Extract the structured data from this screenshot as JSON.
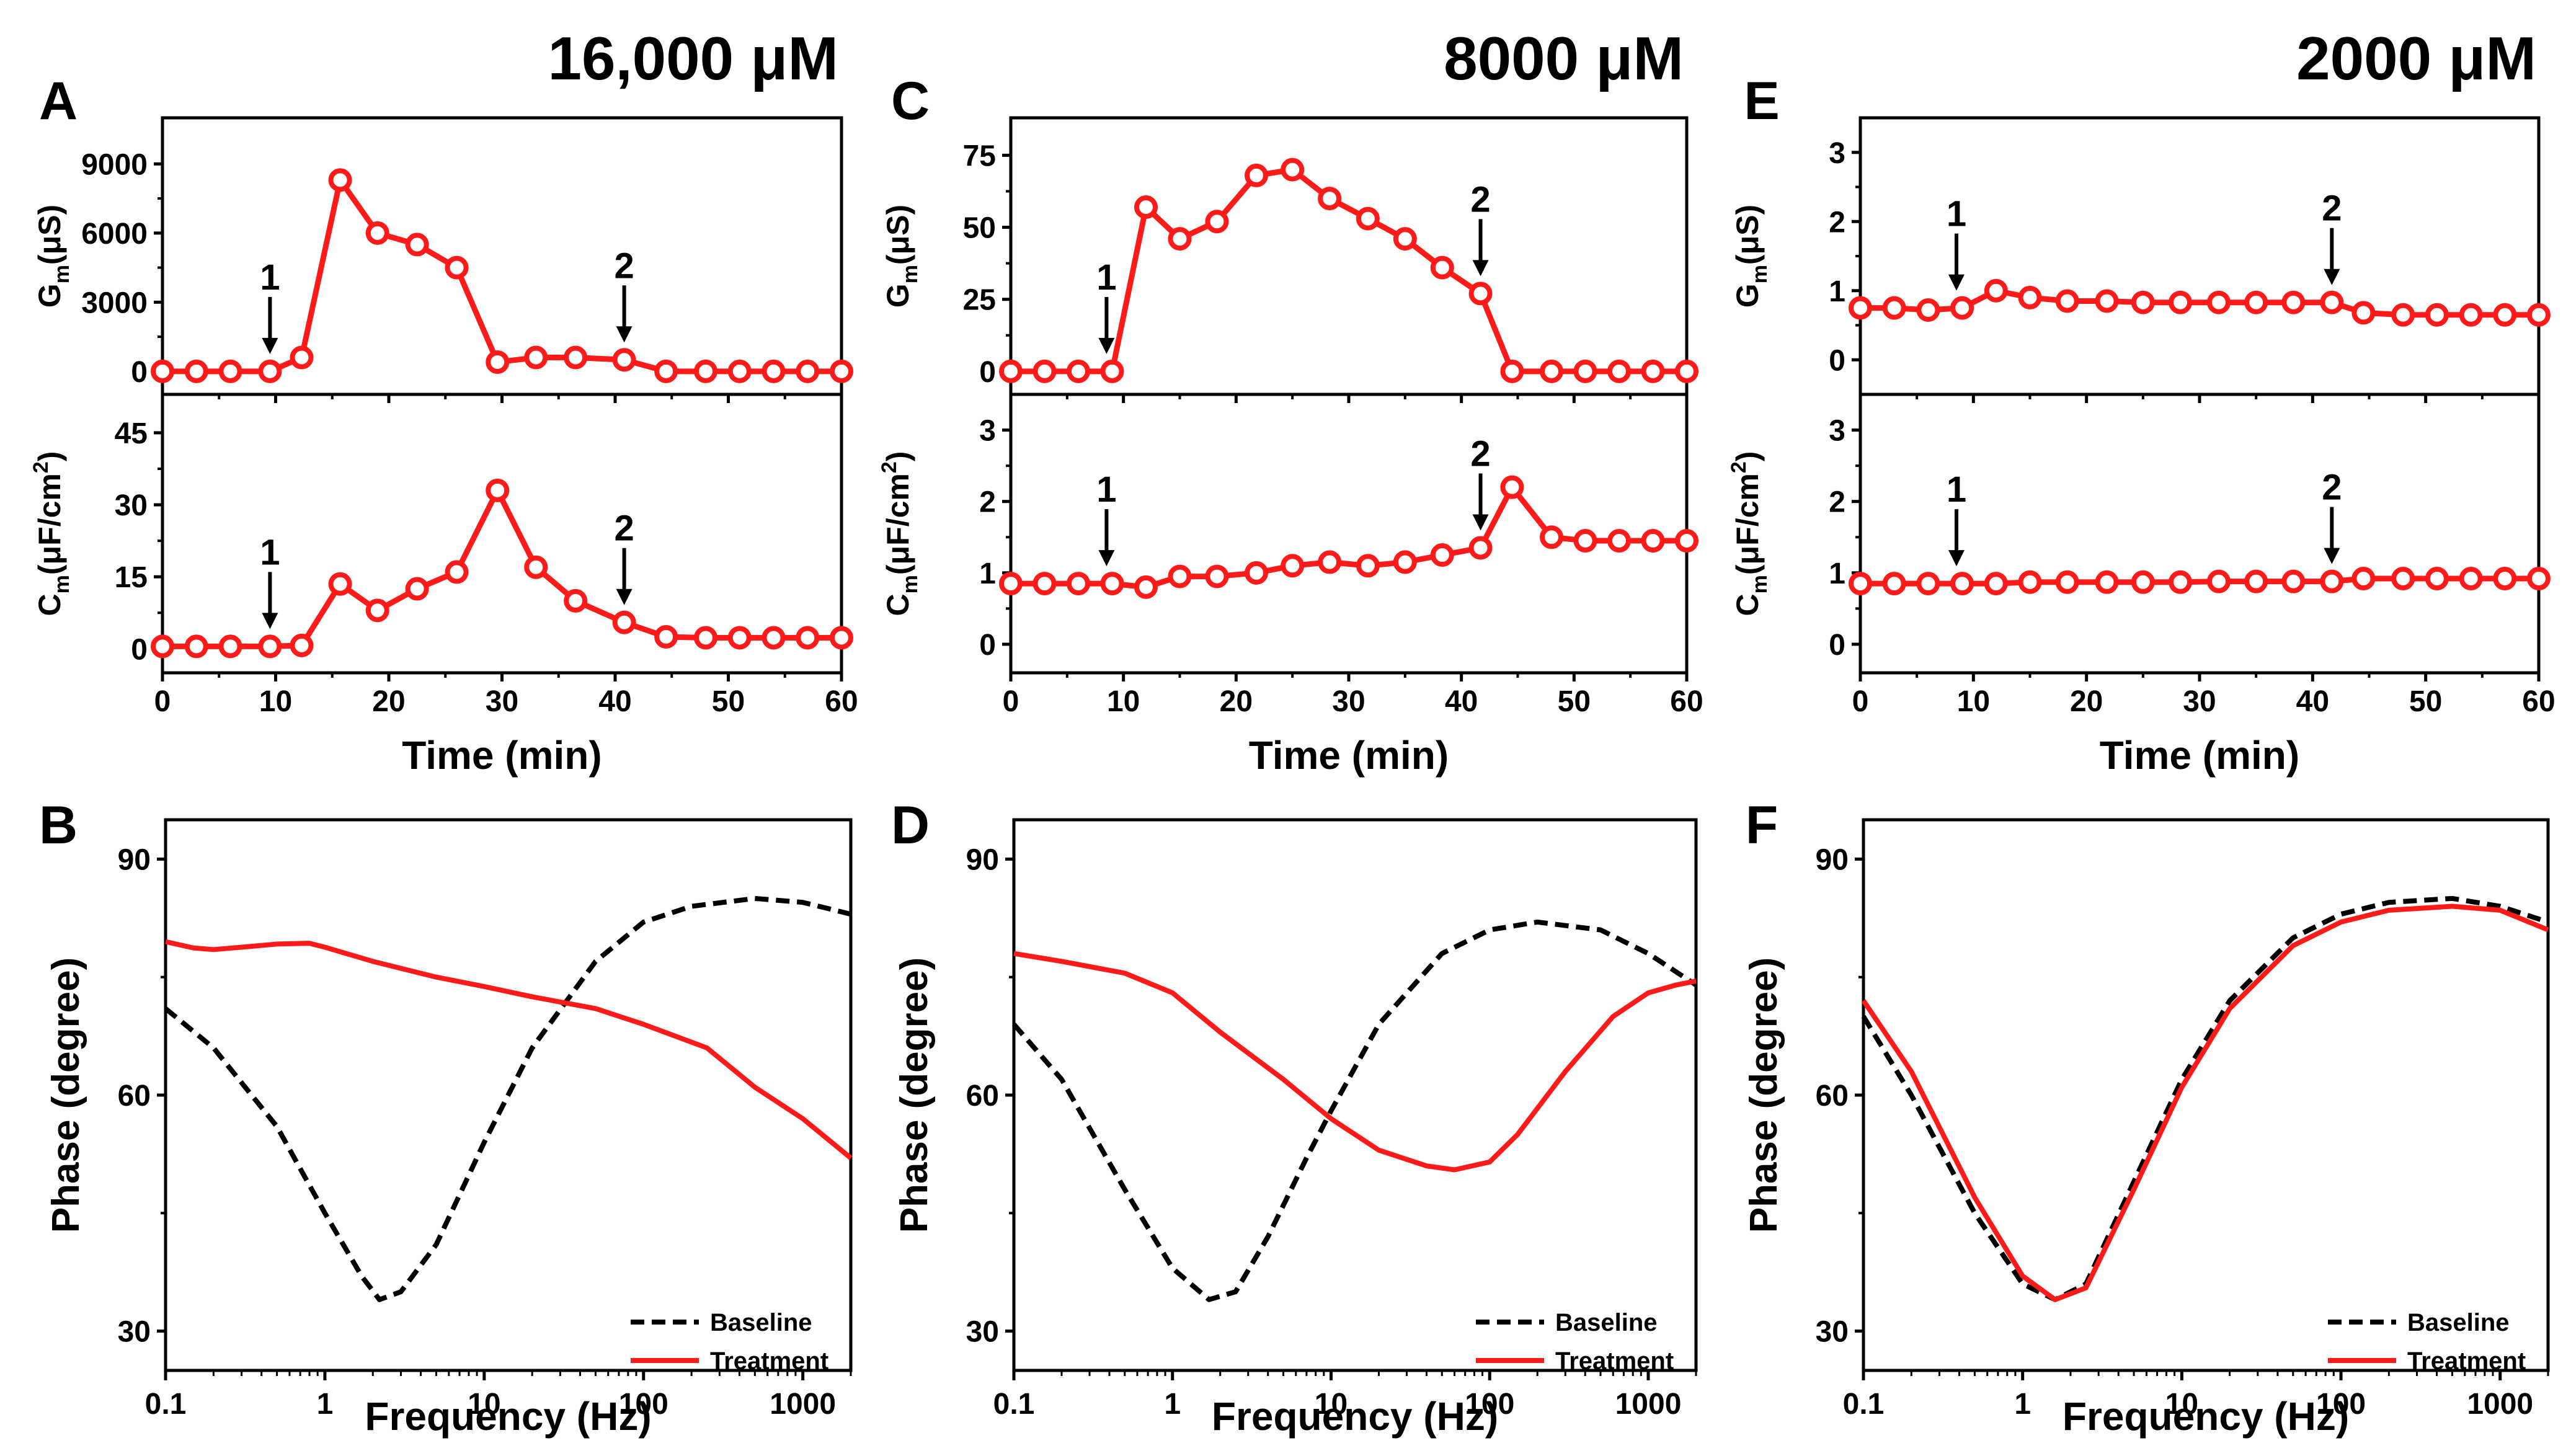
{
  "figure": {
    "colors": {
      "baseline": "#000000",
      "treatment": "#ff1a1a",
      "axis": "#000000",
      "background": "#ffffff"
    }
  },
  "chart_data": [
    {
      "id": "A",
      "panel_label": "A",
      "type": "line",
      "concentration": "16,000 μM",
      "xlabel": "Time (min)",
      "x_ticks": [
        0,
        10,
        20,
        30,
        40,
        50,
        60
      ],
      "xlim": [
        0,
        60
      ],
      "subplots": [
        {
          "key": "gm",
          "ylabel_main": "G",
          "ylabel_sub": "m",
          "ylabel_rest": "(μS)",
          "ylim": [
            -1000,
            11000
          ],
          "y_ticks": [
            0,
            3000,
            6000,
            9000
          ],
          "y_tick_labels": [
            "0",
            "3000",
            "6000",
            "9000"
          ],
          "series": [
            {
              "name": "Gm",
              "marker": "open-circle",
              "x": [
                0,
                3,
                6,
                9.5,
                12.3,
                15.7,
                19,
                22.5,
                26,
                29.6,
                33,
                36.5,
                40.8,
                44.5,
                48,
                51,
                54,
                57,
                60
              ],
              "y": [
                0,
                0,
                0,
                0,
                600,
                8300,
                6000,
                5500,
                4500,
                400,
                600,
                600,
                500,
                0,
                0,
                0,
                0,
                0,
                0
              ]
            }
          ],
          "annotations": [
            {
              "label": "1",
              "x": 9.5,
              "y": 0
            },
            {
              "label": "2",
              "x": 40.8,
              "y": 500
            }
          ]
        },
        {
          "key": "cm",
          "ylabel_main": "C",
          "ylabel_sub": "m",
          "ylabel_rest": "(μF/cm",
          "ylabel_sup": "2",
          "ylabel_close": ")",
          "ylim": [
            -5,
            53
          ],
          "y_ticks": [
            0,
            15,
            30,
            45
          ],
          "y_tick_labels": [
            "0",
            "15",
            "30",
            "45"
          ],
          "series": [
            {
              "name": "Cm",
              "marker": "open-circle",
              "x": [
                0,
                3,
                6,
                9.5,
                12.3,
                15.7,
                19,
                22.5,
                26,
                29.6,
                33,
                36.5,
                40.8,
                44.5,
                48,
                51,
                54,
                57,
                60
              ],
              "y": [
                0.5,
                0.5,
                0.5,
                0.5,
                0.7,
                13.5,
                8,
                12.5,
                16,
                33,
                17,
                10,
                5.5,
                2.5,
                2.3,
                2.3,
                2.3,
                2.3,
                2.3
              ]
            }
          ],
          "annotations": [
            {
              "label": "1",
              "x": 9.5,
              "y": 0.5
            },
            {
              "label": "2",
              "x": 40.8,
              "y": 5.5
            }
          ]
        }
      ]
    },
    {
      "id": "C",
      "panel_label": "C",
      "type": "line",
      "concentration": "8000 μM",
      "xlabel": "Time (min)",
      "x_ticks": [
        0,
        10,
        20,
        30,
        40,
        50,
        60
      ],
      "xlim": [
        0,
        60
      ],
      "subplots": [
        {
          "key": "gm",
          "ylabel_main": "G",
          "ylabel_sub": "m",
          "ylabel_rest": "(μS)",
          "ylim": [
            -8,
            88
          ],
          "y_ticks": [
            0,
            25,
            50,
            75
          ],
          "y_tick_labels": [
            "0",
            "25",
            "50",
            "75"
          ],
          "series": [
            {
              "name": "Gm",
              "marker": "open-circle",
              "x": [
                0,
                3,
                6,
                9,
                12,
                15,
                18.3,
                21.8,
                25,
                28.3,
                31.7,
                35,
                38.3,
                41.7,
                44.5,
                48,
                51,
                54,
                57,
                60
              ],
              "y": [
                0,
                0,
                0,
                0,
                57,
                46,
                52,
                68,
                70,
                60,
                53,
                46,
                36,
                27,
                0,
                0,
                0,
                0,
                0,
                0
              ]
            }
          ],
          "annotations": [
            {
              "label": "1",
              "x": 8.5,
              "y": 0
            },
            {
              "label": "2",
              "x": 41.7,
              "y": 27
            }
          ]
        },
        {
          "key": "cm",
          "ylabel_main": "C",
          "ylabel_sub": "m",
          "ylabel_rest": "(μF/cm",
          "ylabel_sup": "2",
          "ylabel_close": ")",
          "ylim": [
            -0.4,
            3.5
          ],
          "y_ticks": [
            0,
            1,
            2,
            3
          ],
          "y_tick_labels": [
            "0",
            "1",
            "2",
            "3"
          ],
          "series": [
            {
              "name": "Cm",
              "marker": "open-circle",
              "x": [
                0,
                3,
                6,
                9,
                12,
                15,
                18.3,
                21.8,
                25,
                28.3,
                31.7,
                35,
                38.3,
                41.7,
                44.5,
                48,
                51,
                54,
                57,
                60
              ],
              "y": [
                0.85,
                0.85,
                0.85,
                0.85,
                0.8,
                0.95,
                0.95,
                1.0,
                1.1,
                1.15,
                1.1,
                1.15,
                1.25,
                1.35,
                2.2,
                1.5,
                1.45,
                1.45,
                1.45,
                1.45
              ]
            }
          ],
          "annotations": [
            {
              "label": "1",
              "x": 8.5,
              "y": 0.85
            },
            {
              "label": "2",
              "x": 41.7,
              "y": 1.35
            }
          ]
        }
      ]
    },
    {
      "id": "E",
      "panel_label": "E",
      "type": "line",
      "concentration": "2000 μM",
      "xlabel": "Time (min)",
      "x_ticks": [
        0,
        10,
        20,
        30,
        40,
        50,
        60
      ],
      "xlim": [
        0,
        60
      ],
      "subplots": [
        {
          "key": "gm",
          "ylabel_main": "G",
          "ylabel_sub": "m",
          "ylabel_rest": "(μS)",
          "ylim": [
            -0.5,
            3.5
          ],
          "y_ticks": [
            0,
            1,
            2,
            3
          ],
          "y_tick_labels": [
            "0",
            "1",
            "2",
            "3"
          ],
          "series": [
            {
              "name": "Gm",
              "marker": "open-circle",
              "x": [
                0,
                3,
                6,
                9,
                12,
                15,
                18.3,
                21.8,
                25,
                28.3,
                31.7,
                35,
                38.3,
                41.7,
                44.5,
                48,
                51,
                54,
                57,
                60
              ],
              "y": [
                0.75,
                0.75,
                0.72,
                0.75,
                1.0,
                0.9,
                0.85,
                0.85,
                0.83,
                0.83,
                0.83,
                0.83,
                0.83,
                0.83,
                0.68,
                0.65,
                0.65,
                0.65,
                0.65,
                0.65
              ]
            }
          ],
          "annotations": [
            {
              "label": "1",
              "x": 8.5,
              "y": 0.75
            },
            {
              "label": "2",
              "x": 41.7,
              "y": 0.83
            }
          ]
        },
        {
          "key": "cm",
          "ylabel_main": "C",
          "ylabel_sub": "m",
          "ylabel_rest": "(μF/cm",
          "ylabel_sup": "2",
          "ylabel_close": ")",
          "ylim": [
            -0.4,
            3.5
          ],
          "y_ticks": [
            0,
            1,
            2,
            3
          ],
          "y_tick_labels": [
            "0",
            "1",
            "2",
            "3"
          ],
          "series": [
            {
              "name": "Cm",
              "marker": "open-circle",
              "x": [
                0,
                3,
                6,
                9,
                12,
                15,
                18.3,
                21.8,
                25,
                28.3,
                31.7,
                35,
                38.3,
                41.7,
                44.5,
                48,
                51,
                54,
                57,
                60
              ],
              "y": [
                0.85,
                0.85,
                0.85,
                0.85,
                0.85,
                0.87,
                0.87,
                0.87,
                0.87,
                0.87,
                0.88,
                0.88,
                0.88,
                0.88,
                0.92,
                0.92,
                0.92,
                0.92,
                0.92,
                0.92
              ]
            }
          ],
          "annotations": [
            {
              "label": "1",
              "x": 8.5,
              "y": 0.85
            },
            {
              "label": "2",
              "x": 41.7,
              "y": 0.88
            }
          ]
        }
      ]
    },
    {
      "id": "B",
      "panel_label": "B",
      "type": "line",
      "xscale": "log",
      "xlabel": "Frequency (Hz)",
      "ylabel": "Phase (degree)",
      "xlim": [
        0.1,
        2000
      ],
      "x_ticks": [
        0.1,
        1,
        10,
        100,
        1000
      ],
      "x_tick_labels": [
        "0.1",
        "1",
        "10",
        "100",
        "1000"
      ],
      "ylim": [
        25,
        95
      ],
      "y_ticks": [
        30,
        60,
        90
      ],
      "y_tick_labels": [
        "30",
        "60",
        "90"
      ],
      "legend": {
        "position": "bottom-right",
        "entries": [
          "Baseline",
          "Treatment"
        ]
      },
      "series": [
        {
          "name": "Baseline",
          "style": "dashed",
          "x": [
            0.1,
            0.2,
            0.5,
            1,
            1.7,
            2.2,
            3,
            5,
            10,
            20,
            50,
            100,
            200,
            500,
            1000,
            2000
          ],
          "y": [
            71,
            66,
            56,
            45,
            37,
            34,
            35,
            41,
            54,
            66,
            77,
            82,
            84,
            85,
            84.5,
            83
          ]
        },
        {
          "name": "Treatment",
          "style": "solid",
          "x": [
            0.1,
            0.15,
            0.2,
            0.3,
            0.5,
            0.8,
            1,
            2,
            5,
            10,
            20,
            50,
            100,
            250,
            500,
            1000,
            2000
          ],
          "y": [
            79.5,
            78.7,
            78.5,
            78.8,
            79.2,
            79.3,
            78.8,
            77,
            75,
            73.8,
            72.5,
            71,
            69,
            66,
            61,
            57,
            52
          ]
        }
      ]
    },
    {
      "id": "D",
      "panel_label": "D",
      "type": "line",
      "xscale": "log",
      "xlabel": "Frequency (Hz)",
      "ylabel": "Phase (degree)",
      "xlim": [
        0.1,
        2000
      ],
      "x_ticks": [
        0.1,
        1,
        10,
        100,
        1000
      ],
      "x_tick_labels": [
        "0.1",
        "1",
        "10",
        "100",
        "1000"
      ],
      "ylim": [
        25,
        95
      ],
      "y_ticks": [
        30,
        60,
        90
      ],
      "y_tick_labels": [
        "30",
        "60",
        "90"
      ],
      "legend": {
        "position": "bottom-right",
        "entries": [
          "Baseline",
          "Treatment"
        ]
      },
      "series": [
        {
          "name": "Baseline",
          "style": "dashed",
          "x": [
            0.1,
            0.2,
            0.5,
            1,
            1.7,
            2.5,
            4,
            7,
            10,
            20,
            50,
            100,
            200,
            500,
            1000,
            2000
          ],
          "y": [
            69,
            62,
            48,
            38,
            34,
            35,
            42,
            52,
            58,
            69,
            78,
            81,
            82,
            81,
            78,
            74
          ]
        },
        {
          "name": "Treatment",
          "style": "solid",
          "x": [
            0.1,
            0.2,
            0.5,
            1,
            2,
            5,
            10,
            20,
            40,
            60,
            100,
            150,
            300,
            600,
            1000,
            1500,
            2000
          ],
          "y": [
            78,
            77,
            75.5,
            73,
            68,
            62,
            57,
            53,
            51,
            50.5,
            51.5,
            55,
            63,
            70,
            73,
            74,
            74.5
          ]
        }
      ]
    },
    {
      "id": "F",
      "panel_label": "F",
      "type": "line",
      "xscale": "log",
      "xlabel": "Frequency (Hz)",
      "ylabel": "Phase (degree)",
      "xlim": [
        0.1,
        2000
      ],
      "x_ticks": [
        0.1,
        1,
        10,
        100,
        1000
      ],
      "x_tick_labels": [
        "0.1",
        "1",
        "10",
        "100",
        "1000"
      ],
      "ylim": [
        25,
        95
      ],
      "y_ticks": [
        30,
        60,
        90
      ],
      "y_tick_labels": [
        "30",
        "60",
        "90"
      ],
      "legend": {
        "position": "bottom-right",
        "entries": [
          "Baseline",
          "Treatment"
        ]
      },
      "series": [
        {
          "name": "Baseline",
          "style": "dashed",
          "x": [
            0.1,
            0.2,
            0.5,
            1,
            1.6,
            2.5,
            5,
            10,
            20,
            50,
            100,
            200,
            500,
            1000,
            2000
          ],
          "y": [
            70,
            60,
            45,
            36,
            34,
            36,
            49,
            62,
            72,
            80,
            83,
            84.5,
            85,
            84,
            82
          ]
        },
        {
          "name": "Treatment",
          "style": "solid",
          "x": [
            0.1,
            0.2,
            0.5,
            1,
            1.6,
            2.5,
            5,
            10,
            20,
            50,
            100,
            200,
            500,
            1000,
            2000
          ],
          "y": [
            72,
            63,
            47,
            37,
            34,
            35.5,
            48,
            61,
            71,
            79,
            82,
            83.5,
            84,
            83.5,
            81
          ]
        }
      ]
    }
  ]
}
